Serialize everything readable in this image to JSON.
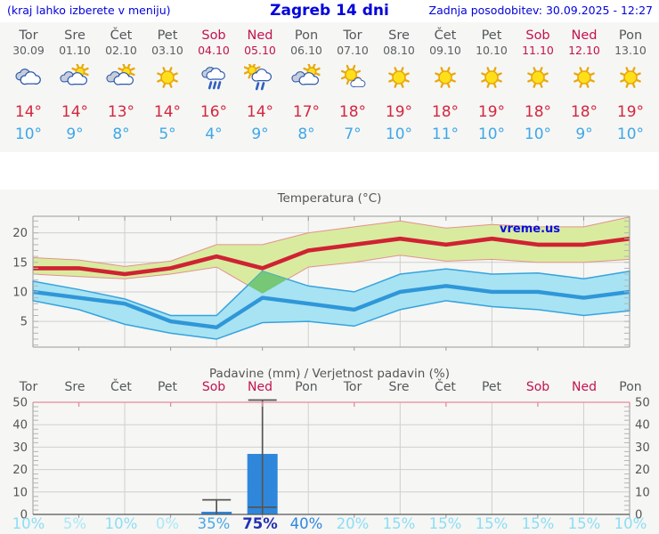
{
  "header": {
    "left_note": "(kraj lahko izberete v meniju)",
    "title": "Zagreb 14 dni",
    "last_update": "Zadnja posodobitev: 30.09.2025 - 12:27"
  },
  "watermark": "vreme.us",
  "colors": {
    "link_blue": "#0202dd",
    "day_gray": "#54585a",
    "weekend_red": "#c2134f",
    "temp_max_red": "#d32740",
    "temp_min_blue": "#3fa7e8",
    "max_band_fill": "#d9eb9f",
    "max_band_edge": "#e3928e",
    "min_band_fill": "#a7e3f3",
    "min_band_edge": "#36a3dc",
    "overlap_green": "#76c776",
    "max_line": "#cf2233",
    "min_line": "#2f97d8",
    "bar_blue": "#2f87dc",
    "whisker_gray": "#555555",
    "grid": "#cfcfcf",
    "spine": "#9a9a9a",
    "minor_tick": "#b5b5b5",
    "axis_text": "#555555",
    "top_spine_pink": "#e8899b",
    "prob_low": "#8bdef4",
    "prob_verylow": "#a9e8f8",
    "prob_mid": "#49a7e8",
    "prob_mid2": "#2e86de",
    "prob_high": "#2431b4"
  },
  "days": [
    {
      "name": "Tor",
      "date": "30.09",
      "weekend": false,
      "icon": "cloudy",
      "tmax": "14°",
      "tmin": "10°",
      "prob": "10%"
    },
    {
      "name": "Sre",
      "date": "01.10",
      "weekend": false,
      "icon": "partly-cloudy",
      "tmax": "14°",
      "tmin": "9°",
      "prob": "5%"
    },
    {
      "name": "Čet",
      "date": "02.10",
      "weekend": false,
      "icon": "partly-cloudy",
      "tmax": "13°",
      "tmin": "8°",
      "prob": "10%"
    },
    {
      "name": "Pet",
      "date": "03.10",
      "weekend": false,
      "icon": "sunny",
      "tmax": "14°",
      "tmin": "5°",
      "prob": "0%"
    },
    {
      "name": "Sob",
      "date": "04.10",
      "weekend": true,
      "icon": "rain",
      "tmax": "16°",
      "tmin": "4°",
      "prob": "35%"
    },
    {
      "name": "Ned",
      "date": "05.10",
      "weekend": true,
      "icon": "sun-rain",
      "tmax": "14°",
      "tmin": "9°",
      "prob": "75%"
    },
    {
      "name": "Pon",
      "date": "06.10",
      "weekend": false,
      "icon": "partly-cloudy",
      "tmax": "17°",
      "tmin": "8°",
      "prob": "40%"
    },
    {
      "name": "Tor",
      "date": "07.10",
      "weekend": false,
      "icon": "mostly-sunny",
      "tmax": "18°",
      "tmin": "7°",
      "prob": "20%"
    },
    {
      "name": "Sre",
      "date": "08.10",
      "weekend": false,
      "icon": "sunny",
      "tmax": "19°",
      "tmin": "10°",
      "prob": "15%"
    },
    {
      "name": "Čet",
      "date": "09.10",
      "weekend": false,
      "icon": "sunny",
      "tmax": "18°",
      "tmin": "11°",
      "prob": "15%"
    },
    {
      "name": "Pet",
      "date": "10.10",
      "weekend": false,
      "icon": "sunny",
      "tmax": "19°",
      "tmin": "10°",
      "prob": "15%"
    },
    {
      "name": "Sob",
      "date": "11.10",
      "weekend": true,
      "icon": "sunny",
      "tmax": "18°",
      "tmin": "10°",
      "prob": "15%"
    },
    {
      "name": "Ned",
      "date": "12.10",
      "weekend": true,
      "icon": "sunny",
      "tmax": "18°",
      "tmin": "9°",
      "prob": "15%"
    },
    {
      "name": "Pon",
      "date": "13.10",
      "weekend": false,
      "icon": "sunny",
      "tmax": "19°",
      "tmin": "10°",
      "prob": "10%"
    }
  ],
  "chart_data": [
    {
      "type": "area",
      "title": "Temperatura (°C)",
      "categories": [
        "Tor 30.09",
        "Sre 01.10",
        "Čet 02.10",
        "Pet 03.10",
        "Sob 04.10",
        "Ned 05.10",
        "Pon 06.10",
        "Tor 07.10",
        "Sre 08.10",
        "Čet 09.10",
        "Pet 10.10",
        "Sob 11.10",
        "Ned 12.10",
        "Pon 13.10"
      ],
      "series": [
        {
          "name": "temp_max",
          "values": [
            14,
            14,
            13,
            14,
            16,
            14,
            17,
            18,
            19,
            18,
            19,
            18,
            18,
            19
          ]
        },
        {
          "name": "temp_max_upper",
          "values": [
            15.8,
            15.4,
            14.3,
            15.2,
            18,
            18,
            20,
            21,
            22,
            20.8,
            21.4,
            21,
            21,
            22.7
          ]
        },
        {
          "name": "temp_max_lower",
          "values": [
            13,
            12.6,
            12.2,
            13,
            14.2,
            9.7,
            14.2,
            15,
            16.2,
            15.2,
            15.5,
            15,
            15,
            15.5
          ]
        },
        {
          "name": "temp_min",
          "values": [
            10,
            9,
            8,
            5,
            4,
            9,
            8,
            7,
            10,
            11,
            10,
            10,
            9,
            10
          ]
        },
        {
          "name": "temp_min_upper",
          "values": [
            11.8,
            10.4,
            8.8,
            6,
            6,
            13.5,
            11,
            10,
            13,
            13.9,
            13,
            13.2,
            12.2,
            13.5
          ]
        },
        {
          "name": "temp_min_lower",
          "values": [
            8.5,
            7,
            4.5,
            3,
            2,
            4.8,
            5,
            4.2,
            7,
            8.5,
            7.5,
            7,
            6,
            6.8
          ]
        }
      ],
      "ylim": [
        0.65,
        22.8
      ],
      "yticks": [
        5,
        10,
        15,
        20
      ],
      "grid": true,
      "legend": "none"
    },
    {
      "type": "bar",
      "title": "Padavine (mm) / Verjetnost padavin (%)",
      "categories": [
        "Tor",
        "Sre",
        "Čet",
        "Pet",
        "Sob",
        "Ned",
        "Pon",
        "Tor",
        "Sre",
        "Čet",
        "Pet",
        "Sob",
        "Ned",
        "Pon"
      ],
      "values": [
        0,
        0,
        0,
        0,
        1.2,
        27,
        0,
        0,
        0,
        0,
        0,
        0,
        0,
        0
      ],
      "whiskers": [
        null,
        null,
        null,
        null,
        {
          "min": 0,
          "max": 6.5,
          "caps": [
            6.5
          ]
        },
        {
          "min": 0,
          "max": 51,
          "caps": [
            3.2,
            51
          ]
        },
        null,
        null,
        null,
        null,
        null,
        null,
        null,
        null
      ],
      "probabilities": [
        10,
        5,
        10,
        0,
        35,
        75,
        40,
        20,
        15,
        15,
        15,
        15,
        15,
        10
      ],
      "ylim": [
        0,
        51.6
      ],
      "yticks": [
        0,
        10,
        20,
        30,
        40,
        50
      ],
      "grid": true,
      "legend": "none"
    }
  ]
}
